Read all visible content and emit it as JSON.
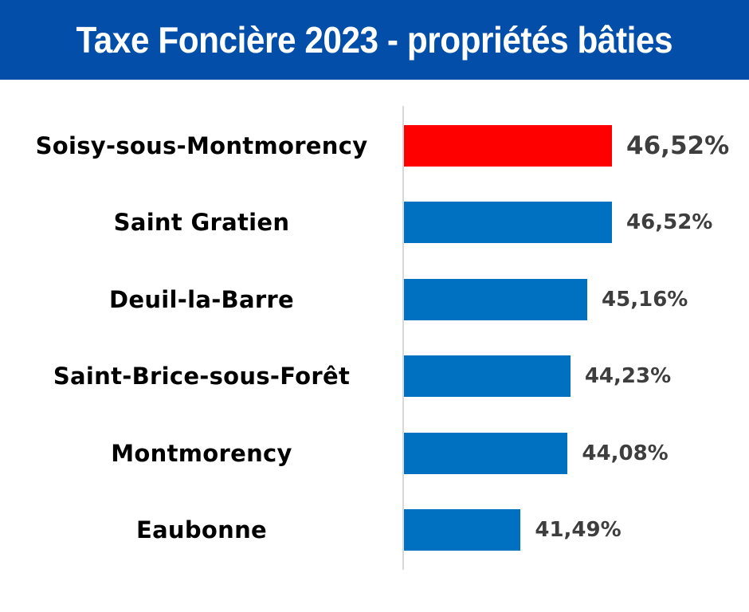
{
  "header": {
    "title": "Taxe Foncière 2023 - propriétés bâties",
    "background": "#034ea8"
  },
  "colors": {
    "highlight": "#ff0000",
    "bar": "#0070c0",
    "value_text": "#3e3e3e",
    "axis": "#d8d8d8"
  },
  "rows": [
    {
      "label": "Soisy-sous-Montmorency",
      "value_label": "46,52%",
      "value": 46.52,
      "highlight": true
    },
    {
      "label": "Saint Gratien",
      "value_label": "46,52%",
      "value": 46.52,
      "highlight": false
    },
    {
      "label": "Deuil-la-Barre",
      "value_label": "45,16%",
      "value": 45.16,
      "highlight": false
    },
    {
      "label": "Saint-Brice-sous-Forêt",
      "value_label": "44,23%",
      "value": 44.23,
      "highlight": false
    },
    {
      "label": "Montmorency",
      "value_label": "44,08%",
      "value": 44.08,
      "highlight": false
    },
    {
      "label": "Eaubonne",
      "value_label": "41,49%",
      "value": 41.49,
      "highlight": false
    }
  ],
  "chart_data": {
    "type": "bar",
    "orientation": "horizontal",
    "title": "Taxe Foncière 2023 - propriétés bâties",
    "categories": [
      "Soisy-sous-Montmorency",
      "Saint Gratien",
      "Deuil-la-Barre",
      "Saint-Brice-sous-Forêt",
      "Montmorency",
      "Eaubonne"
    ],
    "values": [
      46.52,
      46.52,
      45.16,
      44.23,
      44.08,
      41.49
    ],
    "value_labels": [
      "46,52%",
      "46,52%",
      "45,16%",
      "44,23%",
      "44,08%",
      "41,49%"
    ],
    "unit": "%",
    "xlabel": "",
    "ylabel": "",
    "grid": false,
    "legend": "none",
    "highlighted_category": "Soisy-sous-Montmorency",
    "bar_colors": [
      "#ff0000",
      "#0070c0",
      "#0070c0",
      "#0070c0",
      "#0070c0",
      "#0070c0"
    ]
  }
}
